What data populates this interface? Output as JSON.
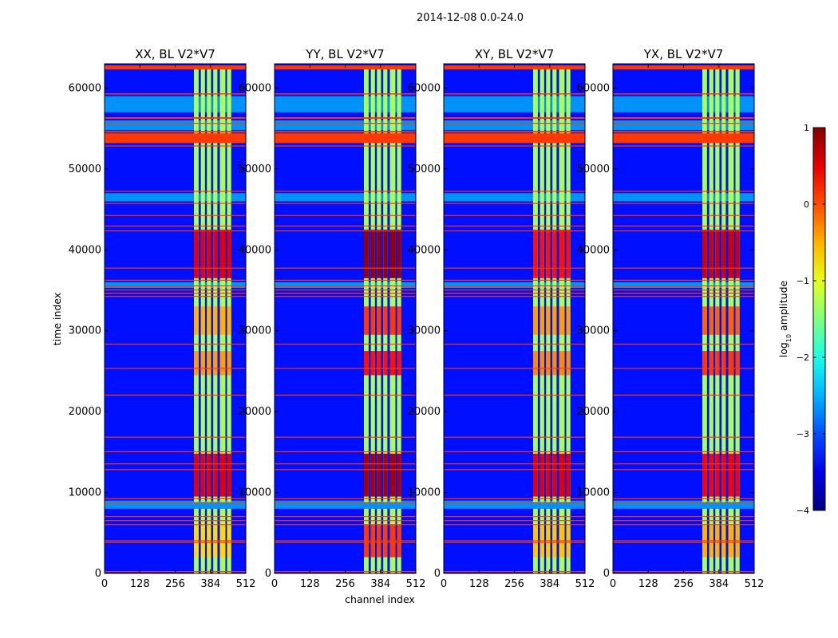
{
  "chart_data": {
    "type": "heatmap",
    "suptitle": "2014-12-08 0.0-24.0",
    "xlabel": "channel index",
    "ylabel": "time index",
    "colormap": "jet",
    "color_scale": "log10",
    "colorbar": {
      "label_prefix": "log",
      "label_sub": "10",
      "label_suffix": " amplitude",
      "range": [
        -4,
        1
      ],
      "ticks": [
        1,
        0,
        -1,
        -2,
        -3,
        -4
      ],
      "tick_labels": [
        "1",
        "0",
        "−1",
        "−2",
        "−3",
        "−4"
      ]
    },
    "xlim": [
      0,
      512
    ],
    "ylim": [
      0,
      63000
    ],
    "xticks": [
      0,
      128,
      256,
      384,
      512
    ],
    "yticks": [
      0,
      10000,
      20000,
      30000,
      40000,
      50000,
      60000
    ],
    "panels": [
      {
        "title": "XX, BL V2*V7",
        "polarization": "XX"
      },
      {
        "title": "YY, BL V2*V7",
        "polarization": "YY"
      },
      {
        "title": "XY, BL V2*V7",
        "polarization": "XY"
      },
      {
        "title": "YX, BL V2*V7",
        "polarization": "YX"
      }
    ],
    "band_columns": {
      "channel_ranges": [
        [
          324,
          341
        ],
        [
          349,
          364
        ],
        [
          371,
          386
        ],
        [
          394,
          409
        ],
        [
          418,
          438
        ],
        [
          444,
          459
        ]
      ],
      "base_log10_amplitude": -1.3,
      "active_time_ranges": [
        [
          0,
          8000
        ],
        [
          8800,
          62800
        ]
      ]
    },
    "background_log10_amplitude": -3.3,
    "flagged_time_ranges": [
      [
        62300,
        62800
      ],
      [
        59200,
        59350
      ],
      [
        56200,
        56400
      ],
      [
        55600,
        55700
      ],
      [
        54500,
        54700
      ],
      [
        53200,
        54400
      ],
      [
        52800,
        52900
      ],
      [
        47200,
        47300
      ],
      [
        45700,
        45800
      ],
      [
        44200,
        44300
      ],
      [
        42900,
        43000
      ],
      [
        42300,
        42400
      ],
      [
        37700,
        37800
      ],
      [
        36200,
        36300
      ],
      [
        35500,
        35600
      ],
      [
        35000,
        35100
      ],
      [
        34600,
        34700
      ],
      [
        34200,
        34300
      ],
      [
        28300,
        28400
      ],
      [
        25300,
        25400
      ],
      [
        22000,
        22100
      ],
      [
        16800,
        16900
      ],
      [
        15000,
        15100
      ],
      [
        13500,
        13600
      ],
      [
        12800,
        12900
      ],
      [
        9200,
        9300
      ],
      [
        8700,
        8800
      ],
      [
        7000,
        7100
      ],
      [
        6500,
        6600
      ],
      [
        6000,
        6100
      ],
      [
        4000,
        4100
      ],
      [
        3800,
        3900
      ],
      [
        200,
        300
      ]
    ],
    "bright_events": [
      {
        "time_range": [
          9500,
          14800
        ],
        "log10_amplitude": {
          "XX": 0.5,
          "YY": 0.8,
          "XY": 0.5,
          "YX": 0.4
        }
      },
      {
        "time_range": [
          36500,
          42500
        ],
        "log10_amplitude": {
          "XX": 0.5,
          "YY": 0.9,
          "XY": 0.3,
          "YX": 0.6
        }
      },
      {
        "time_range": [
          24500,
          27500
        ],
        "log10_amplitude": {
          "XX": -0.4,
          "YY": 0.3,
          "XY": -0.3,
          "YX": 0.1
        }
      },
      {
        "time_range": [
          29500,
          33000
        ],
        "log10_amplitude": {
          "XX": -0.5,
          "YY": 0.1,
          "XY": -0.4,
          "YX": -0.1
        }
      },
      {
        "time_range": [
          2000,
          6000
        ],
        "log10_amplitude": {
          "XX": -0.7,
          "YY": 0.1,
          "XY": -0.6,
          "YX": -0.5
        }
      }
    ],
    "cyan_time_ranges": [
      [
        54800,
        56000
      ],
      [
        57000,
        59000
      ],
      [
        46000,
        47000
      ],
      [
        35300,
        36000
      ],
      [
        8000,
        9000
      ]
    ]
  }
}
